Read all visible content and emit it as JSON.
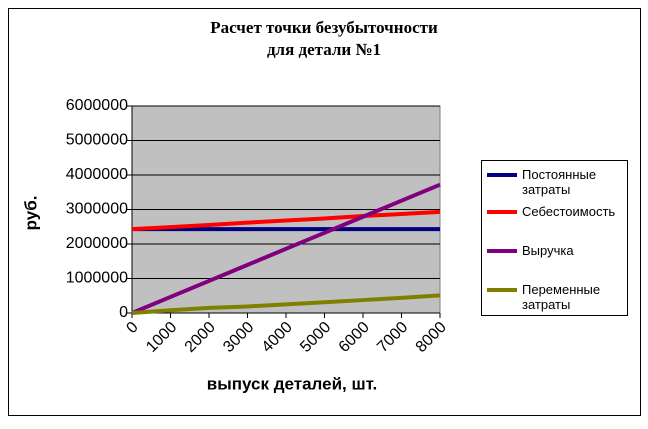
{
  "chart_data": {
    "type": "line",
    "title": [
      "Расчет точки безубыточности",
      "для детали  №1"
    ],
    "x_label": "выпуск деталей, шт.",
    "y_label": "руб.",
    "x": [
      0,
      1000,
      2000,
      3000,
      4000,
      5000,
      6000,
      7000,
      8000
    ],
    "xlim": [
      0,
      8000
    ],
    "xticks": [
      0,
      1000,
      2000,
      3000,
      4000,
      5000,
      6000,
      7000,
      8000
    ],
    "ylim": [
      0,
      6000000
    ],
    "yticks": [
      0,
      1000000,
      2000000,
      3000000,
      4000000,
      5000000,
      6000000
    ],
    "grid": true,
    "background": "#c0c0c0",
    "legend": "right",
    "series": [
      {
        "name": "Постоянные\nзатраты",
        "color": "#000080",
        "values": [
          2430000,
          2430000,
          2430000,
          2430000,
          2430000,
          2430000,
          2430000,
          2430000,
          2430000
        ]
      },
      {
        "name": "Себестоимость",
        "color": "#ff0000",
        "values": [
          2430000,
          2490000,
          2550000,
          2620000,
          2680000,
          2740000,
          2810000,
          2870000,
          2930000
        ]
      },
      {
        "name": "Выручка",
        "color": "#800080",
        "values": [
          0,
          465000,
          930000,
          1395000,
          1860000,
          2325000,
          2790000,
          3255000,
          3720000
        ]
      },
      {
        "name": "Переменные\nзатраты",
        "color": "#808000",
        "values": [
          0,
          80000,
          150000,
          190000,
          250000,
          310000,
          375000,
          440000,
          510000
        ]
      }
    ]
  }
}
